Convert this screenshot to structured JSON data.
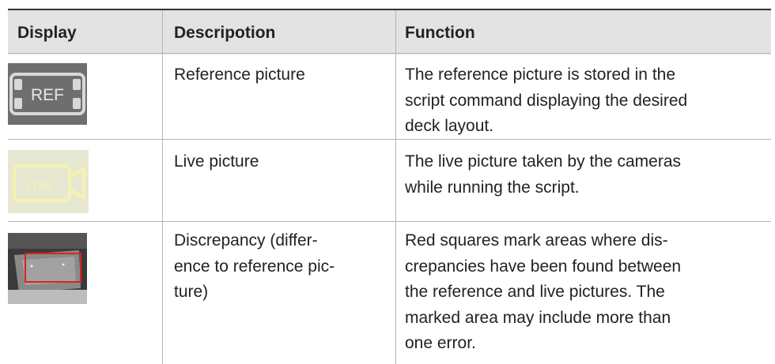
{
  "table": {
    "header": [
      "Display",
      "Descripotion",
      "Function"
    ],
    "rows": [
      {
        "icon_label": "REF",
        "description": [
          "Reference picture"
        ],
        "function": [
          "The reference picture is stored in the",
          "script command displaying the desired",
          "deck layout."
        ]
      },
      {
        "icon_label": "LIVE",
        "description": [
          "Live picture"
        ],
        "function": [
          "The live picture taken by the cameras",
          "while running the script."
        ]
      },
      {
        "description": [
          "Discrepancy (differ-",
          "ence to reference pic-",
          "ture)"
        ],
        "function": [
          "Red squares mark areas where dis-",
          "crepancies have been found between",
          "the reference and live pictures. The",
          "marked area may include more than",
          "one error."
        ]
      }
    ]
  }
}
